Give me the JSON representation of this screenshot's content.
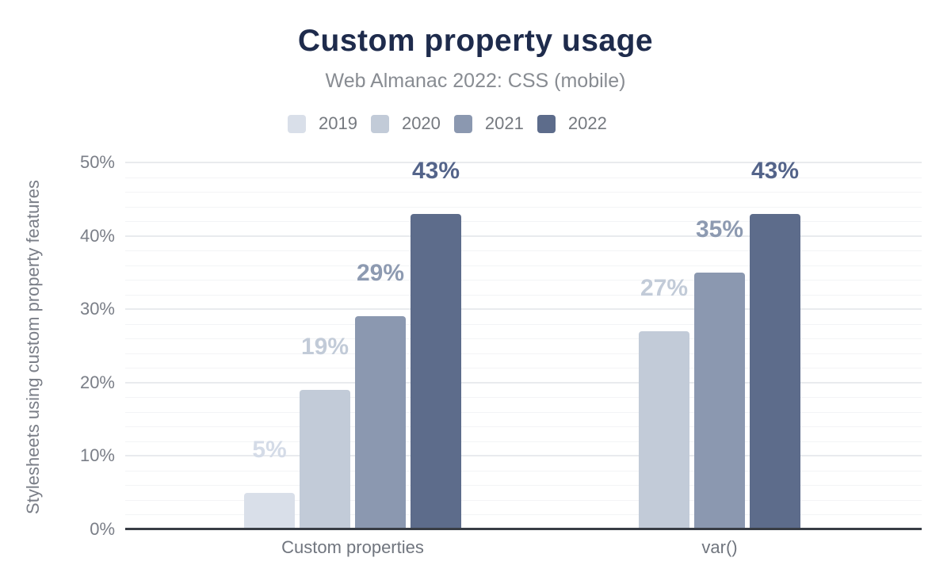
{
  "chart_data": {
    "type": "bar",
    "title": "Custom property usage",
    "subtitle": "Web Almanac 2022: CSS (mobile)",
    "ylabel": "Stylesheets using custom property features",
    "ylim": [
      0,
      50
    ],
    "yticks": [
      "0%",
      "10%",
      "20%",
      "30%",
      "40%",
      "50%"
    ],
    "ytick_values": [
      0,
      10,
      20,
      30,
      40,
      50
    ],
    "minor_grid_step": 2,
    "major_grid_step": 10,
    "grid": true,
    "legend_position": "top",
    "categories": [
      "Custom properties",
      "var()"
    ],
    "series": [
      {
        "name": "2019",
        "color": "#d9dfe9",
        "label_color": "#d4dbe7",
        "values": [
          5,
          null
        ]
      },
      {
        "name": "2020",
        "color": "#c2cbd8",
        "label_color": "#c2cbd8",
        "values": [
          19,
          27
        ]
      },
      {
        "name": "2021",
        "color": "#8b98b0",
        "label_color": "#8d9ab1",
        "values": [
          29,
          35
        ]
      },
      {
        "name": "2022",
        "color": "#5d6c8b",
        "label_color": "#54648a",
        "values": [
          43,
          43
        ]
      }
    ],
    "value_label_format": "{v}%",
    "axis_line_color": "#383d45",
    "title_color": "#1e2b4c"
  }
}
